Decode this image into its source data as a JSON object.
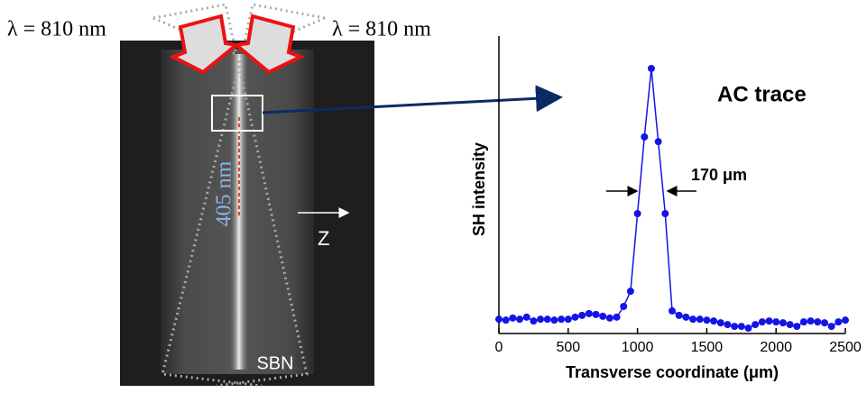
{
  "figure": {
    "left_label": "λ = 810 nm",
    "right_label": "λ = 810 nm",
    "beam_label": "405 nm",
    "axis_label": "Z",
    "sample_label": "SBN"
  },
  "chart_data": {
    "type": "line",
    "xlabel": "Transverse coordinate (μm)",
    "ylabel": "SH intensity",
    "annotations": [
      "AC trace",
      "170 μm"
    ],
    "xlim": [
      0,
      2500
    ],
    "xticks": [
      0,
      500,
      1000,
      1500,
      2000,
      2500
    ],
    "ylim": [
      0,
      1
    ],
    "series": [
      {
        "color": "#1414e6",
        "x": [
          0,
          50,
          100,
          150,
          200,
          250,
          300,
          350,
          400,
          450,
          500,
          550,
          600,
          650,
          700,
          750,
          800,
          850,
          900,
          950,
          1000,
          1050,
          1100,
          1150,
          1200,
          1250,
          1300,
          1350,
          1400,
          1450,
          1500,
          1550,
          1600,
          1650,
          1700,
          1750,
          1800,
          1850,
          1900,
          1950,
          2000,
          2050,
          2100,
          2150,
          2200,
          2250,
          2300,
          2350,
          2400,
          2450,
          2500
        ],
        "values": [
          0.048,
          0.045,
          0.052,
          0.048,
          0.055,
          0.042,
          0.048,
          0.048,
          0.045,
          0.048,
          0.048,
          0.055,
          0.061,
          0.067,
          0.064,
          0.058,
          0.052,
          0.055,
          0.091,
          0.142,
          0.403,
          0.661,
          0.891,
          0.645,
          0.403,
          0.076,
          0.061,
          0.055,
          0.048,
          0.048,
          0.045,
          0.042,
          0.036,
          0.03,
          0.024,
          0.024,
          0.018,
          0.03,
          0.039,
          0.042,
          0.039,
          0.036,
          0.03,
          0.024,
          0.039,
          0.042,
          0.039,
          0.036,
          0.024,
          0.039,
          0.045
        ]
      }
    ]
  }
}
